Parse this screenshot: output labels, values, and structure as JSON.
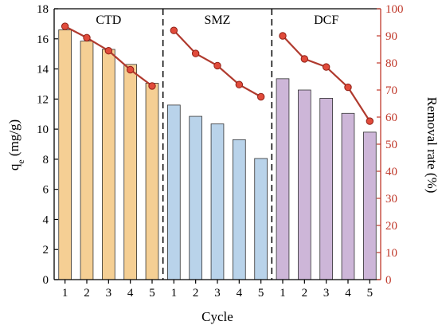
{
  "chart_data": {
    "type": "bar",
    "xlabel": "Cycle",
    "ylabel": "q",
    "ylabel_sub": "e",
    "ylabel_unit": " (mg/g)",
    "y2label": "Removal rate (%)",
    "ylim": [
      0,
      18
    ],
    "y2lim": [
      0,
      100
    ],
    "yticks": [
      0,
      2,
      4,
      6,
      8,
      10,
      12,
      14,
      16,
      18
    ],
    "y2ticks": [
      0,
      10,
      20,
      30,
      40,
      50,
      60,
      70,
      80,
      90,
      100
    ],
    "categories": [
      "1",
      "2",
      "3",
      "4",
      "5"
    ],
    "groups": [
      {
        "name": "CTD",
        "bar_color": "#f5cf94",
        "qe": [
          16.6,
          15.85,
          15.3,
          14.3,
          13.05
        ],
        "removal": [
          93.5,
          89.3,
          84.5,
          77.5,
          71.5
        ]
      },
      {
        "name": "SMZ",
        "bar_color": "#b9d3ea",
        "qe": [
          11.6,
          10.85,
          10.35,
          9.3,
          8.05
        ],
        "removal": [
          92,
          83.5,
          79,
          72,
          67.5
        ]
      },
      {
        "name": "DCF",
        "bar_color": "#cdb6d8",
        "qe": [
          13.35,
          12.6,
          12.05,
          11.05,
          9.8
        ],
        "removal": [
          90,
          81.5,
          78.5,
          71,
          58.5
        ]
      }
    ],
    "line_color": "#b03a2e",
    "point_color": "#e14b3b",
    "grid": false
  }
}
